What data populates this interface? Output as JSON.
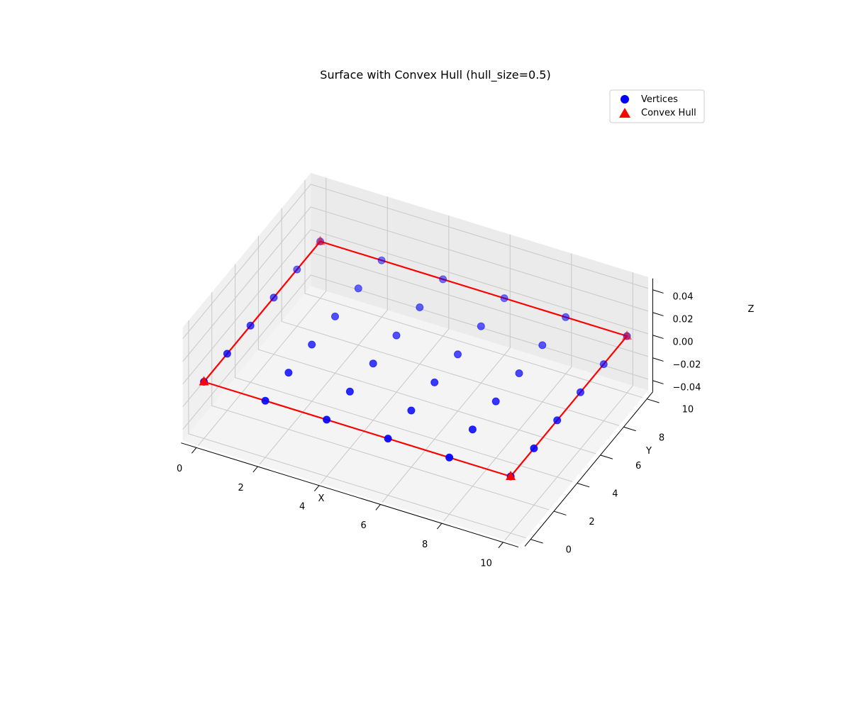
{
  "chart_data": {
    "type": "scatter",
    "projection": "3d",
    "title": "Surface with Convex Hull (hull_size=0.5)",
    "xlabel": "X",
    "ylabel": "Y",
    "zlabel": "Z",
    "xlim": [
      -0.5,
      10.5
    ],
    "ylim": [
      -0.5,
      10.5
    ],
    "zlim": [
      -0.05,
      0.05
    ],
    "x_ticks": [
      "0",
      "2",
      "4",
      "6",
      "8",
      "10"
    ],
    "y_ticks": [
      "0",
      "2",
      "4",
      "6",
      "8",
      "10"
    ],
    "z_ticks": [
      "−0.04",
      "−0.02",
      "0.00",
      "0.02",
      "0.04"
    ],
    "grid": true,
    "legend_position": "top-right",
    "series": [
      {
        "name": "Vertices",
        "marker": "circle",
        "color": "#0000ff",
        "points": [
          [
            0,
            0,
            0
          ],
          [
            2,
            2,
            0
          ],
          [
            4,
            4,
            0
          ],
          [
            6,
            6,
            0
          ],
          [
            8,
            8,
            0
          ],
          [
            10,
            10,
            0
          ],
          [
            0,
            2,
            0
          ],
          [
            0,
            4,
            0
          ],
          [
            0,
            6,
            0
          ],
          [
            0,
            8,
            0
          ],
          [
            2,
            4,
            0
          ],
          [
            2,
            6,
            0
          ],
          [
            2,
            8,
            0
          ],
          [
            2,
            10,
            0
          ],
          [
            4,
            6,
            0
          ],
          [
            4,
            8,
            0
          ],
          [
            4,
            10,
            0
          ],
          [
            6,
            8,
            0
          ],
          [
            6,
            10,
            0
          ],
          [
            8,
            10,
            0
          ],
          [
            2,
            0,
            0
          ],
          [
            4,
            0,
            0
          ],
          [
            6,
            0,
            0
          ],
          [
            8,
            0,
            0
          ],
          [
            10,
            0,
            0
          ],
          [
            4,
            2,
            0
          ],
          [
            6,
            2,
            0
          ],
          [
            8,
            2,
            0
          ],
          [
            10,
            2,
            0
          ],
          [
            6,
            4,
            0
          ],
          [
            8,
            4,
            0
          ],
          [
            10,
            4,
            0
          ],
          [
            8,
            6,
            0
          ],
          [
            10,
            6,
            0
          ],
          [
            10,
            8,
            0
          ],
          [
            0,
            10,
            0
          ]
        ]
      },
      {
        "name": "Convex Hull",
        "marker": "triangle",
        "color": "#ff0000",
        "points": [
          [
            0,
            0,
            0
          ],
          [
            10,
            0,
            0
          ],
          [
            10,
            10,
            0
          ],
          [
            0,
            10,
            0
          ]
        ],
        "closed": true
      }
    ]
  }
}
